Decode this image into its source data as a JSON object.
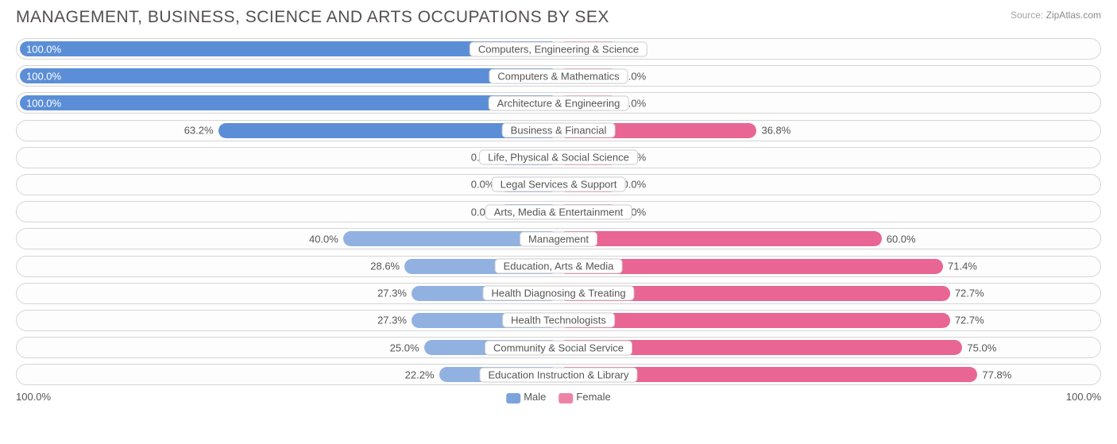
{
  "title": "MANAGEMENT, BUSINESS, SCIENCE AND ARTS OCCUPATIONS BY SEX",
  "source_label": "Source:",
  "source_value": "ZipAtlas.com",
  "chart": {
    "type": "diverging-bar",
    "male_color_full": "#5b8ed6",
    "male_color_light": "#91b2e1",
    "female_color_full": "#e96594",
    "female_color_light": "#f19bb9",
    "track_border": "#d5d5d5",
    "track_bg": "#fdfdfd",
    "text_color": "#555555",
    "min_bar_pct": 11,
    "rows": [
      {
        "category": "Computers, Engineering & Science",
        "male_pct": 100.0,
        "male_full": true,
        "female_pct": 0.0,
        "female_full": false
      },
      {
        "category": "Computers & Mathematics",
        "male_pct": 100.0,
        "male_full": true,
        "female_pct": 0.0,
        "female_full": false
      },
      {
        "category": "Architecture & Engineering",
        "male_pct": 100.0,
        "male_full": true,
        "female_pct": 0.0,
        "female_full": false
      },
      {
        "category": "Business & Financial",
        "male_pct": 63.2,
        "male_full": true,
        "female_pct": 36.8,
        "female_full": true
      },
      {
        "category": "Life, Physical & Social Science",
        "male_pct": 0.0,
        "male_full": false,
        "female_pct": 0.0,
        "female_full": false
      },
      {
        "category": "Legal Services & Support",
        "male_pct": 0.0,
        "male_full": false,
        "female_pct": 0.0,
        "female_full": false
      },
      {
        "category": "Arts, Media & Entertainment",
        "male_pct": 0.0,
        "male_full": false,
        "female_pct": 0.0,
        "female_full": false
      },
      {
        "category": "Management",
        "male_pct": 40.0,
        "male_full": false,
        "female_pct": 60.0,
        "female_full": true
      },
      {
        "category": "Education, Arts & Media",
        "male_pct": 28.6,
        "male_full": false,
        "female_pct": 71.4,
        "female_full": true
      },
      {
        "category": "Health Diagnosing & Treating",
        "male_pct": 27.3,
        "male_full": false,
        "female_pct": 72.7,
        "female_full": true
      },
      {
        "category": "Health Technologists",
        "male_pct": 27.3,
        "male_full": false,
        "female_pct": 72.7,
        "female_full": true
      },
      {
        "category": "Community & Social Service",
        "male_pct": 25.0,
        "male_full": false,
        "female_pct": 75.0,
        "female_full": true
      },
      {
        "category": "Education Instruction & Library",
        "male_pct": 22.2,
        "male_full": false,
        "female_pct": 77.8,
        "female_full": true
      }
    ]
  },
  "axis": {
    "left": "100.0%",
    "right": "100.0%"
  },
  "legend": {
    "male_label": "Male",
    "female_label": "Female",
    "male_swatch": "#7ba3dc",
    "female_swatch": "#ed82a7"
  }
}
